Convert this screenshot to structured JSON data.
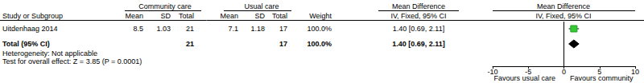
{
  "table": {
    "group_headers": [
      "Community care",
      "Usual care",
      "Mean Difference",
      "Mean Difference"
    ],
    "columns": [
      "Study or Subgroup",
      "Mean",
      "SD",
      "Total",
      "Mean",
      "SD",
      "Total",
      "Weight",
      "IV, Fixed, 95% CI",
      "IV, Fixed, 95% CI"
    ],
    "rows": [
      [
        "Uitdenhaag 2014",
        "8.5",
        "1.03",
        "21",
        "7.1",
        "1.18",
        "17",
        "100.0%",
        "1.40 [0.69, 2.11]"
      ],
      [
        "Total (95% CI)",
        null,
        null,
        "21",
        null,
        null,
        "17",
        "100.0%",
        "1.40 [0.69, 2.11]"
      ]
    ],
    "notes": [
      "Heterogeneity: Not applicable",
      "Test for overall effect: Z = 3.85 (P = 0.0001)"
    ]
  },
  "chart_data": {
    "type": "forest",
    "series": [
      {
        "marker": "square",
        "color": "#33cc33",
        "values": [
          1.4
        ],
        "ci_lower": [
          0.69
        ],
        "ci_upper": [
          2.11
        ]
      },
      {
        "marker": "diamond",
        "color": "#000000",
        "values": [
          1.4
        ],
        "ci_lower": [
          0.69
        ],
        "ci_upper": [
          2.11
        ]
      }
    ],
    "null_line": 0,
    "xlim": [
      -10,
      10
    ],
    "xticks": [
      -10,
      -5,
      0,
      5,
      10
    ],
    "annotations": [
      "Favours usual care",
      "Favours community"
    ]
  }
}
